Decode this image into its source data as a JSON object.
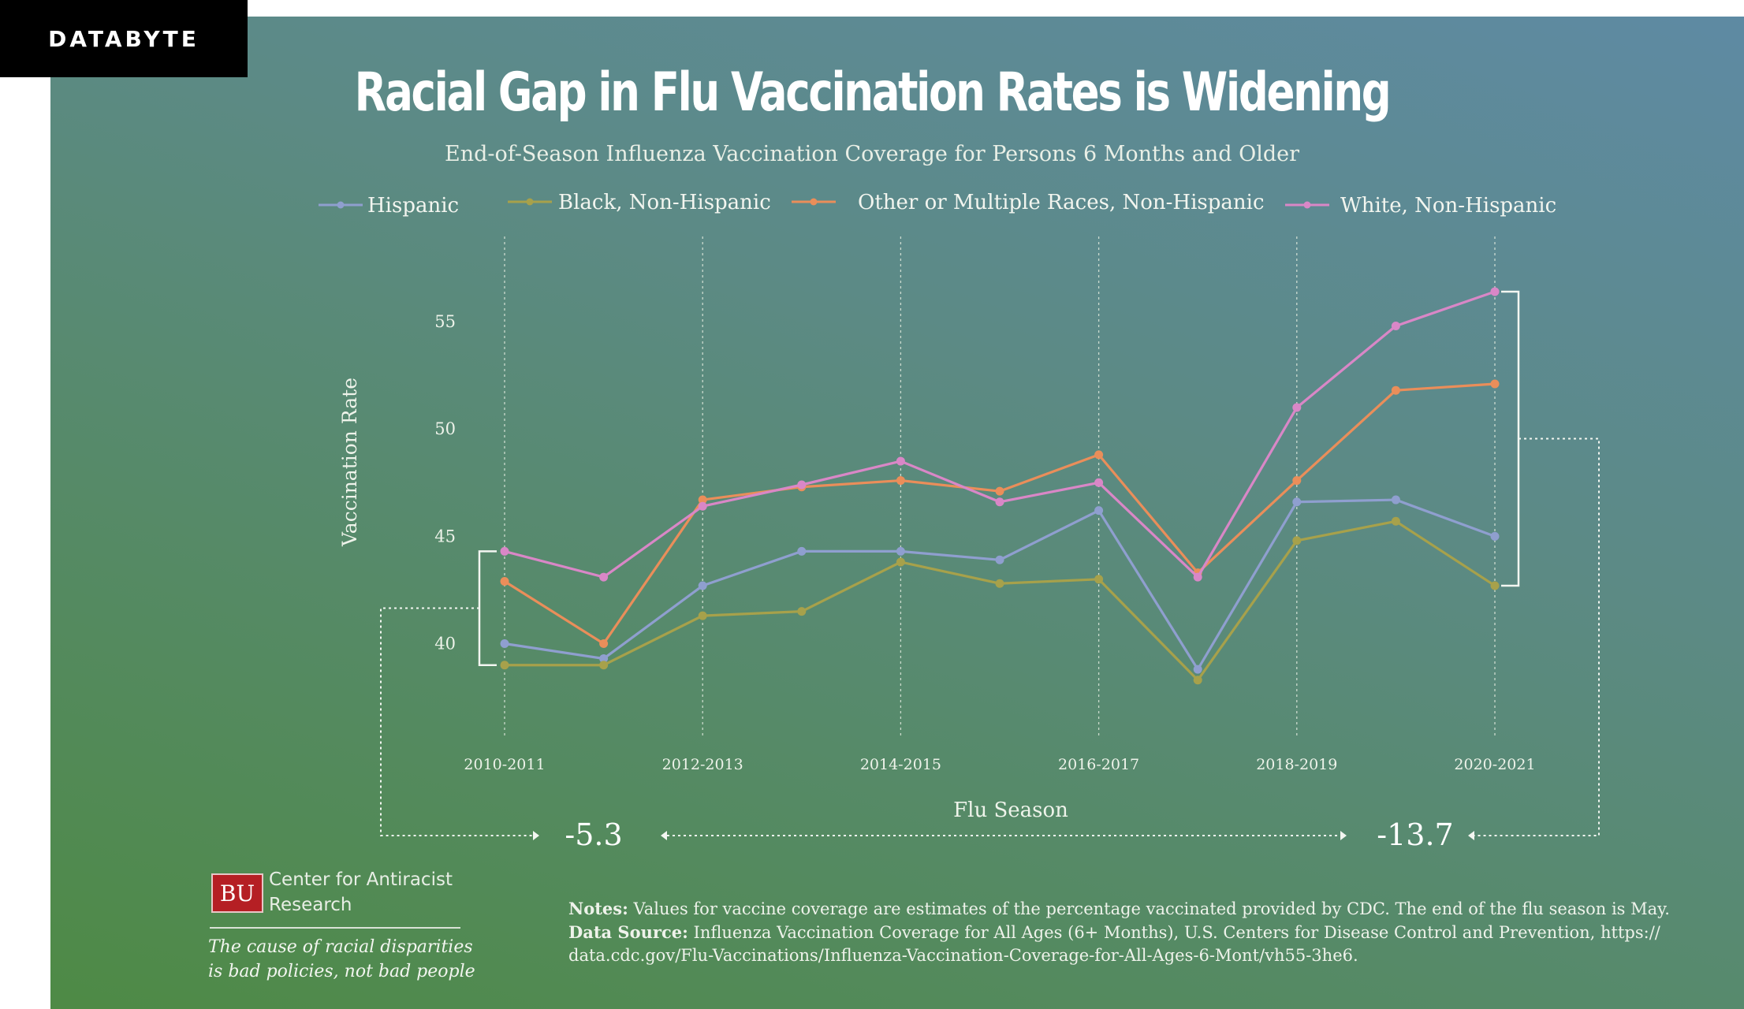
{
  "badge": "DATABYTE",
  "title": "Racial Gap in Flu Vaccination Rates is Widening",
  "subtitle": "End-of-Season Influenza Vaccination Coverage for Persons 6 Months and Older",
  "gap": {
    "start_label": "-5.3",
    "end_label": "-13.7"
  },
  "logo": {
    "mark": "BU",
    "org": "Center for Antiracist Research",
    "tagline_1": "The cause of racial disparities",
    "tagline_2": "is bad policies, not bad people"
  },
  "notes": {
    "notes_label": "Notes:",
    "notes_text": "Values for vaccine coverage are estimates of the percentage vaccinated provided by CDC. The end of the flu season is May.",
    "source_label": "Data Source:",
    "source_text": "Influenza Vaccination Coverage for All Ages (6+ Months), U.S. Centers for Disease Control and Prevention, https://",
    "source_url": "data.cdc.gov/Flu-Vaccinations/Influenza-Vaccination-Coverage-for-All-Ages-6-Mont/vh55-3he6."
  },
  "chart_data": {
    "type": "line",
    "title": "Racial Gap in Flu Vaccination Rates is Widening",
    "subtitle": "End-of-Season Influenza Vaccination Coverage for Persons 6 Months and Older",
    "xlabel": "Flu Season",
    "ylabel": "Vaccination Rate",
    "x": [
      "2010-2011",
      "2011-2012",
      "2012-2013",
      "2013-2014",
      "2014-2015",
      "2015-2016",
      "2016-2017",
      "2017-2018",
      "2018-2019",
      "2019-2020",
      "2020-2021"
    ],
    "x_tick_labels": [
      "2010-2011",
      "2012-2013",
      "2014-2015",
      "2016-2017",
      "2018-2019",
      "2020-2021"
    ],
    "y_ticks": [
      40,
      45,
      50,
      55
    ],
    "ylim": [
      37.3,
      57.5
    ],
    "grid": "vertical dotted",
    "legend": "top",
    "series": [
      {
        "name": "Hispanic",
        "color": "#8f9fcf",
        "values": [
          40.0,
          39.3,
          42.7,
          44.3,
          44.3,
          43.9,
          46.2,
          38.8,
          46.6,
          46.7,
          45.0
        ]
      },
      {
        "name": "Black, Non-Hispanic",
        "color": "#a7a14b",
        "values": [
          39.0,
          39.0,
          41.3,
          41.5,
          43.8,
          42.8,
          43.0,
          38.3,
          44.8,
          45.7,
          42.7
        ]
      },
      {
        "name": "Other or Multiple Races, Non-Hispanic",
        "color": "#ea8e5a",
        "values": [
          42.9,
          40.0,
          46.7,
          47.3,
          47.6,
          47.1,
          48.8,
          43.3,
          47.6,
          51.8,
          52.1
        ]
      },
      {
        "name": "White, Non-Hispanic",
        "color": "#d987c7",
        "values": [
          44.3,
          43.1,
          46.4,
          47.4,
          48.5,
          46.6,
          47.5,
          43.1,
          51.0,
          54.8,
          56.4
        ]
      }
    ]
  }
}
